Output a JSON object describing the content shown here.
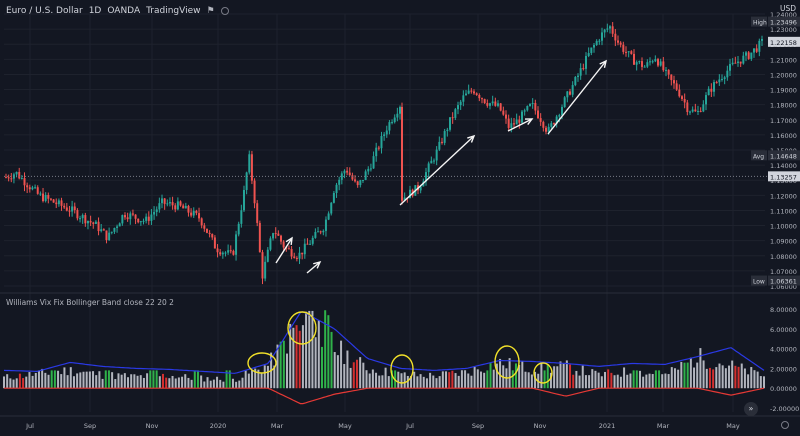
{
  "header": {
    "symbol": "Euro / U.S. Dollar",
    "interval": "1D",
    "exchange": "OANDA",
    "source": "TradingView",
    "currency": "USD"
  },
  "indicator": {
    "title": "Williams Vix Fix Bollinger Band",
    "params": "close 22 20 2"
  },
  "price_axis": {
    "labels": [
      "1.24000",
      "1.23000",
      "1.22000",
      "1.21000",
      "1.20000",
      "1.19000",
      "1.18000",
      "1.17000",
      "1.16000",
      "1.15000",
      "1.14000",
      "1.13000",
      "1.12000",
      "1.11000",
      "1.10000",
      "1.09000",
      "1.08000",
      "1.07000",
      "1.06000"
    ],
    "high_tag": "High",
    "high_value": "1.23496",
    "last_value": "1.22158",
    "avg_tag": "Avg",
    "avg_value": "1.14648",
    "cross_value": "1.13257",
    "low_tag": "Low",
    "low_value": "1.06361"
  },
  "ind_axis": {
    "labels": [
      "8.00000",
      "6.00000",
      "4.00000",
      "2.00000",
      "0.00000",
      "-2.00000"
    ]
  },
  "time_axis": {
    "labels": [
      "Jul",
      "Sep",
      "Nov",
      "2020",
      "Mar",
      "May",
      "Jul",
      "Sep",
      "Nov",
      "2021",
      "Mar",
      "May"
    ]
  },
  "colors": {
    "background": "#131722",
    "up": "#26a69a",
    "down": "#ef5350",
    "histogram": "#b2b5be",
    "histogram_signal": "#2fb24a",
    "histogram_extra": "#d32f2f",
    "upper_band": "#2a39e6",
    "lower_band": "#e53935",
    "annotation_arrow": "#f5f5f5",
    "highlight_circle": "#f2e12a"
  },
  "chart_data": [
    {
      "type": "line",
      "title": "Euro / U.S. Dollar",
      "series": [
        {
          "name": "Euro / U.S. Dollar",
          "x": [
            "Jun 2019",
            "Jul 2019",
            "Aug 2019",
            "Sep 2019",
            "Oct 2019",
            "Nov 2019",
            "Dec 2019",
            "Jan 2020",
            "Feb 2020",
            "Mar 2020",
            "Apr 2020",
            "May 2020",
            "Jun 2020",
            "Jul 2020",
            "Aug 2020",
            "Sep 2020",
            "Oct 2020",
            "Nov 2020",
            "Dec 2020",
            "Jan 2021",
            "Feb 2021",
            "Mar 2021",
            "Apr 2021",
            "May 2021"
          ],
          "values": [
            1.135,
            1.122,
            1.108,
            1.098,
            1.11,
            1.102,
            1.118,
            1.113,
            1.085,
            1.101,
            1.087,
            1.088,
            1.125,
            1.15,
            1.19,
            1.178,
            1.172,
            1.178,
            1.212,
            1.232,
            1.21,
            1.185,
            1.195,
            1.22
          ]
        }
      ],
      "annotations": {
        "high": 1.23496,
        "low": 1.06361,
        "average": 1.14648,
        "last": 1.22158,
        "crosshair": 1.13257
      },
      "ylim": [
        1.06,
        1.24
      ]
    },
    {
      "type": "bar",
      "title": "Williams Vix Fix Bollinger Band",
      "x": [
        "Jun 2019",
        "Jul 2019",
        "Aug 2019",
        "Sep 2019",
        "Oct 2019",
        "Nov 2019",
        "Dec 2019",
        "Jan 2020",
        "Feb 2020",
        "Mar 2020",
        "Apr 2020",
        "May 2020",
        "Jun 2020",
        "Jul 2020",
        "Aug 2020",
        "Sep 2020",
        "Oct 2020",
        "Nov 2020",
        "Dec 2020",
        "Jan 2021",
        "Feb 2021",
        "Mar 2021",
        "Apr 2021",
        "May 2021"
      ],
      "values": [
        1.2,
        1.6,
        2.0,
        1.5,
        1.3,
        1.4,
        1.1,
        1.0,
        2.6,
        7.5,
        4.5,
        2.2,
        1.5,
        1.4,
        1.8,
        2.8,
        2.2,
        2.4,
        1.5,
        1.9,
        1.4,
        3.5,
        2.5,
        1.4
      ],
      "series": [
        {
          "name": "upper",
          "values": [
            1.8,
            1.7,
            2.6,
            2.2,
            2.0,
            1.9,
            1.7,
            1.5,
            2.5,
            7.8,
            6.0,
            3.0,
            2.0,
            1.8,
            2.0,
            2.8,
            2.7,
            2.5,
            2.2,
            2.5,
            2.4,
            3.2,
            4.1,
            1.8
          ]
        },
        {
          "name": "lower",
          "values": [
            0.0,
            0.0,
            0.0,
            0.0,
            0.0,
            0.0,
            0.0,
            0.0,
            0.0,
            -1.6,
            -0.6,
            0.0,
            0.0,
            0.0,
            0.0,
            0.0,
            0.0,
            -0.8,
            0.0,
            0.0,
            0.0,
            0.0,
            -0.7,
            0.0
          ]
        }
      ],
      "ylim": [
        -2.4,
        8.6
      ]
    }
  ]
}
